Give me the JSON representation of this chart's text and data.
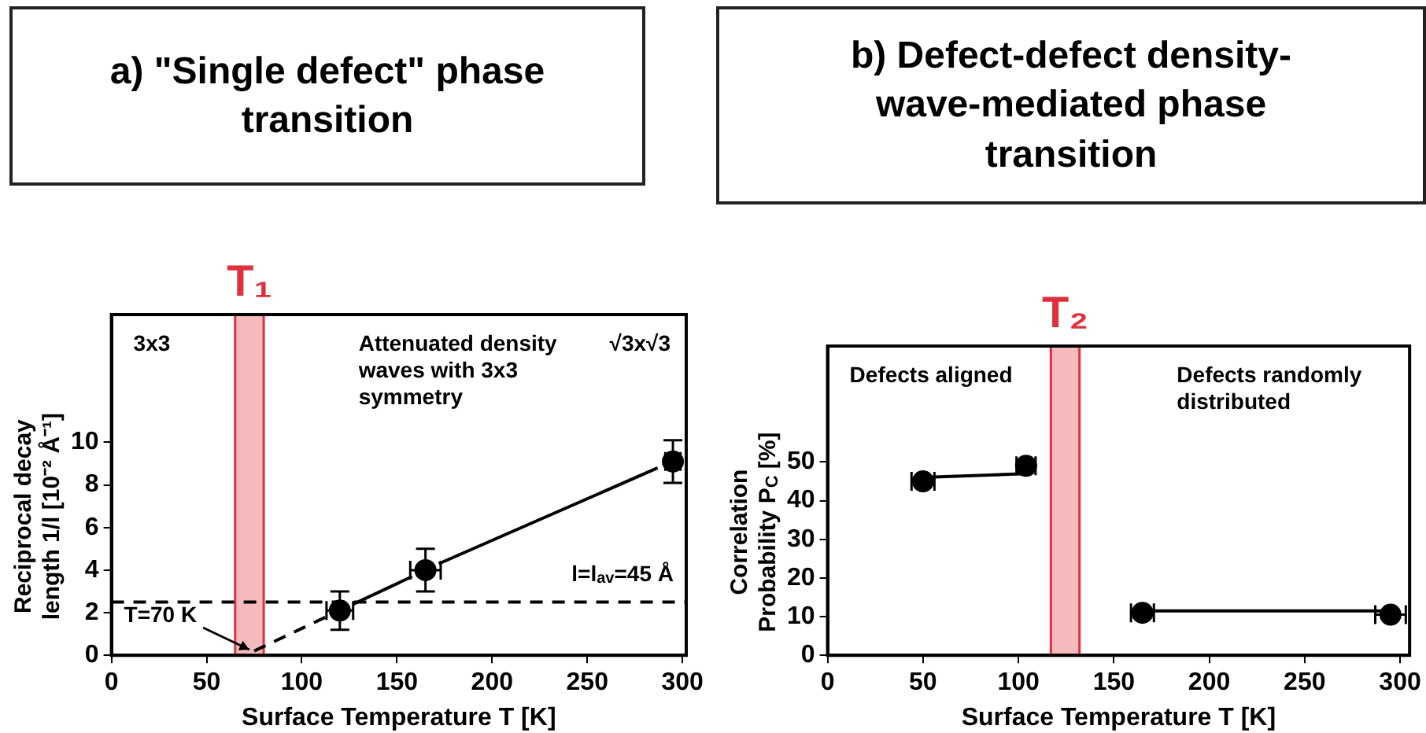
{
  "chart_data": [
    {
      "type": "scatter",
      "title": "a) \"Single defect\" phase transition",
      "xlabel": "Surface Temperature T [K]",
      "ylabel": "Reciprocal decay length 1/l [10⁻² Å⁻¹]",
      "xlim": [
        0,
        302
      ],
      "xticks": [
        0,
        50,
        100,
        150,
        200,
        250,
        300
      ],
      "ylim": [
        0,
        16
      ],
      "yticks": [
        0,
        2,
        4,
        6,
        8,
        10
      ],
      "grid": false,
      "legend": false,
      "series": [
        {
          "type": "scatter",
          "color": "#000000",
          "x": [
            120,
            165,
            295
          ],
          "values": [
            2.1,
            4.0,
            9.1
          ],
          "errors": [
            0.9,
            1.0,
            1.0
          ],
          "xerrors": [
            7,
            8,
            4
          ]
        },
        {
          "type": "line",
          "color": "#000000",
          "line_style": "solid",
          "x": [
            127,
            158,
            165,
            172,
            287
          ],
          "values": [
            2.4,
            3.7,
            null,
            4.3,
            8.8
          ]
        },
        {
          "type": "line",
          "color": "#000000",
          "line_style": "dashed",
          "x": [
            75,
            115
          ],
          "values": [
            0.2,
            1.9
          ]
        }
      ],
      "ref_lines": [
        {
          "axis": "y",
          "value": 2.5,
          "color": "#000000",
          "line_style": "dashed"
        }
      ],
      "bands": [
        {
          "axis": "x",
          "from": 65,
          "to": 80,
          "label": "T₁",
          "color": "#e0303c"
        }
      ],
      "annotations": [
        "3x3",
        "Attenuated density waves with 3x3 symmetry",
        "√3x√3",
        "T=70 K",
        "l=l$_{av}$=45 Å"
      ]
    },
    {
      "type": "scatter",
      "title": "b) Defect-defect density-wave-mediated phase transition",
      "xlabel": "Surface Temperature T [K]",
      "ylabel": "Correlation Probability P$_{C}$ [%]",
      "xlim": [
        0,
        305
      ],
      "xticks": [
        0,
        50,
        100,
        150,
        200,
        250,
        300
      ],
      "ylim": [
        0,
        80
      ],
      "yticks": [
        0,
        10,
        20,
        30,
        40,
        50
      ],
      "grid": false,
      "legend": false,
      "series": [
        {
          "type": "scatter",
          "color": "#000000",
          "x": [
            50,
            104,
            165,
            295
          ],
          "values": [
            45,
            49,
            11,
            10.5
          ],
          "xerrors": [
            6,
            5,
            6,
            8
          ]
        },
        {
          "type": "line",
          "color": "#000000",
          "line_style": "solid",
          "x": [
            50,
            104
          ],
          "values": [
            46,
            47
          ]
        },
        {
          "type": "line",
          "color": "#000000",
          "line_style": "solid",
          "x": [
            165,
            295
          ],
          "values": [
            11.5,
            11.5
          ]
        }
      ],
      "bands": [
        {
          "axis": "x",
          "from": 117,
          "to": 132,
          "label": "T₂",
          "color": "#e0303c"
        }
      ],
      "annotations": [
        "Defects aligned",
        "Defects randomly distributed"
      ]
    }
  ]
}
